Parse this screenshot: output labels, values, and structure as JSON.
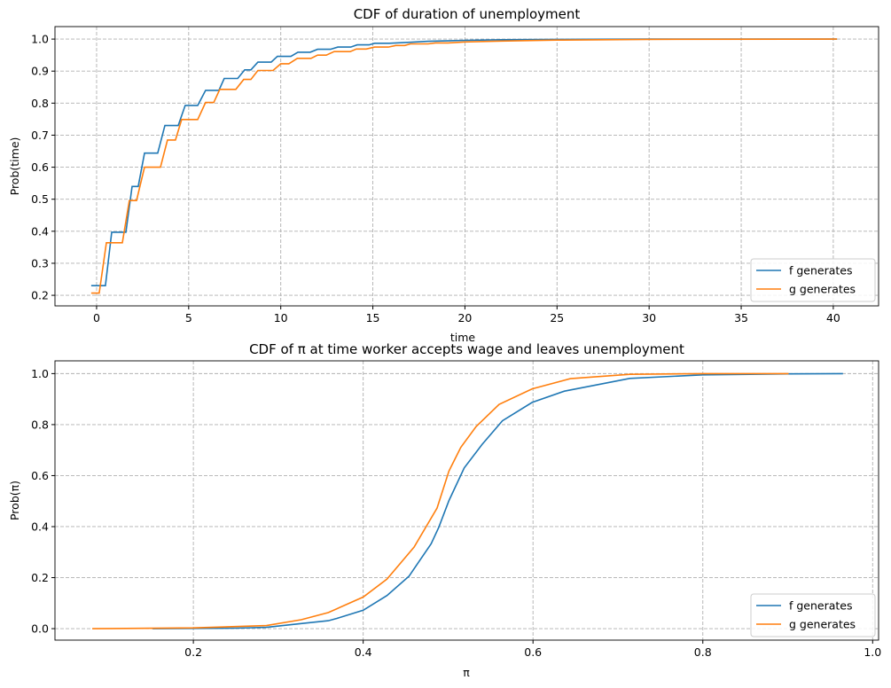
{
  "chart_data": [
    {
      "type": "line",
      "title": "CDF of duration of unemployment",
      "xlabel": "time",
      "ylabel": "Prob(time)",
      "xlim": [
        -2.26,
        42.46
      ],
      "ylim": [
        0.167,
        1.039
      ],
      "xticks": [
        0,
        5,
        10,
        15,
        20,
        25,
        30,
        35,
        40
      ],
      "xtick_labels": [
        "0",
        "5",
        "10",
        "15",
        "20",
        "25",
        "30",
        "35",
        "40"
      ],
      "yticks": [
        0.2,
        0.3,
        0.4,
        0.5,
        0.6,
        0.7,
        0.8,
        0.9,
        1.0
      ],
      "ytick_labels": [
        "0.2",
        "0.3",
        "0.4",
        "0.5",
        "0.6",
        "0.7",
        "0.8",
        "0.9",
        "1.0"
      ],
      "grid": true,
      "legend": "lower right",
      "series": [
        {
          "name": "f generates",
          "color": "#1f77b4",
          "points": [
            [
              -0.29,
              0.23
            ],
            [
              0.48,
              0.23
            ],
            [
              0.82,
              0.397
            ],
            [
              1.59,
              0.397
            ],
            [
              1.93,
              0.54
            ],
            [
              2.26,
              0.54
            ],
            [
              2.6,
              0.644
            ],
            [
              3.32,
              0.644
            ],
            [
              3.71,
              0.73
            ],
            [
              4.43,
              0.73
            ],
            [
              4.81,
              0.793
            ],
            [
              5.49,
              0.793
            ],
            [
              5.92,
              0.84
            ],
            [
              6.64,
              0.84
            ],
            [
              6.93,
              0.877
            ],
            [
              7.66,
              0.877
            ],
            [
              8.04,
              0.904
            ],
            [
              8.38,
              0.904
            ],
            [
              8.76,
              0.928
            ],
            [
              9.48,
              0.928
            ],
            [
              9.82,
              0.946
            ],
            [
              10.55,
              0.946
            ],
            [
              10.93,
              0.959
            ],
            [
              11.6,
              0.959
            ],
            [
              12.0,
              0.968
            ],
            [
              12.7,
              0.968
            ],
            [
              13.1,
              0.975
            ],
            [
              13.8,
              0.975
            ],
            [
              14.15,
              0.982
            ],
            [
              14.8,
              0.982
            ],
            [
              15.1,
              0.987
            ],
            [
              15.9,
              0.987
            ],
            [
              17,
              0.99
            ],
            [
              18,
              0.993
            ],
            [
              20,
              0.996
            ],
            [
              22,
              0.998
            ],
            [
              25,
              0.999
            ],
            [
              30,
              1.0
            ],
            [
              40.2,
              1.0
            ]
          ]
        },
        {
          "name": "g generates",
          "color": "#ff7f0e",
          "points": [
            [
              -0.29,
              0.207
            ],
            [
              0.14,
              0.207
            ],
            [
              0.53,
              0.364
            ],
            [
              1.4,
              0.364
            ],
            [
              1.78,
              0.496
            ],
            [
              2.17,
              0.496
            ],
            [
              2.6,
              0.6
            ],
            [
              3.47,
              0.6
            ],
            [
              3.85,
              0.685
            ],
            [
              4.28,
              0.685
            ],
            [
              4.62,
              0.749
            ],
            [
              5.49,
              0.749
            ],
            [
              5.92,
              0.802
            ],
            [
              6.36,
              0.802
            ],
            [
              6.69,
              0.843
            ],
            [
              7.56,
              0.843
            ],
            [
              7.99,
              0.874
            ],
            [
              8.38,
              0.874
            ],
            [
              8.76,
              0.902
            ],
            [
              9.58,
              0.902
            ],
            [
              10.0,
              0.923
            ],
            [
              10.44,
              0.923
            ],
            [
              10.9,
              0.94
            ],
            [
              11.64,
              0.94
            ],
            [
              12.0,
              0.95
            ],
            [
              12.47,
              0.95
            ],
            [
              12.9,
              0.961
            ],
            [
              13.77,
              0.961
            ],
            [
              14.1,
              0.969
            ],
            [
              14.64,
              0.969
            ],
            [
              15.1,
              0.975
            ],
            [
              15.84,
              0.975
            ],
            [
              16.25,
              0.98
            ],
            [
              16.73,
              0.98
            ],
            [
              17.04,
              0.985
            ],
            [
              18.0,
              0.985
            ],
            [
              18.4,
              0.988
            ],
            [
              19.1,
              0.988
            ],
            [
              20,
              0.991
            ],
            [
              22,
              0.994
            ],
            [
              25,
              0.997
            ],
            [
              30,
              0.999
            ],
            [
              40.2,
              1.0
            ]
          ]
        }
      ]
    },
    {
      "type": "line",
      "title": "CDF of π at time worker accepts wage and leaves unemployment",
      "xlabel": "π",
      "ylabel": "Prob(π)",
      "xlim": [
        0.037,
        1.007
      ],
      "ylim": [
        -0.045,
        1.05
      ],
      "xticks": [
        0.2,
        0.4,
        0.6,
        0.8,
        1.0
      ],
      "xtick_labels": [
        "0.2",
        "0.4",
        "0.6",
        "0.8",
        "1.0"
      ],
      "yticks": [
        0,
        0.2,
        0.4,
        0.6,
        0.8,
        1.0
      ],
      "ytick_labels": [
        "0.0",
        "0.2",
        "0.4",
        "0.6",
        "0.8",
        "1.0"
      ],
      "grid": true,
      "legend": "lower right",
      "series": [
        {
          "name": "f generates",
          "color": "#1f77b4",
          "points": [
            [
              0.152,
              0
            ],
            [
              0.25,
              0.002
            ],
            [
              0.286,
              0.005
            ],
            [
              0.327,
              0.02
            ],
            [
              0.359,
              0.031
            ],
            [
              0.369,
              0.04
            ],
            [
              0.4,
              0.072
            ],
            [
              0.428,
              0.13
            ],
            [
              0.454,
              0.206
            ],
            [
              0.48,
              0.333
            ],
            [
              0.489,
              0.397
            ],
            [
              0.501,
              0.502
            ],
            [
              0.519,
              0.63
            ],
            [
              0.54,
              0.722
            ],
            [
              0.564,
              0.815
            ],
            [
              0.599,
              0.887
            ],
            [
              0.637,
              0.931
            ],
            [
              0.714,
              0.981
            ],
            [
              0.8,
              0.995
            ],
            [
              0.9,
              0.999
            ],
            [
              0.965,
              1.0
            ]
          ]
        },
        {
          "name": "g generates",
          "color": "#ff7f0e",
          "points": [
            [
              0.081,
              0
            ],
            [
              0.2,
              0.003
            ],
            [
              0.286,
              0.012
            ],
            [
              0.327,
              0.035
            ],
            [
              0.359,
              0.063
            ],
            [
              0.4,
              0.124
            ],
            [
              0.428,
              0.194
            ],
            [
              0.46,
              0.32
            ],
            [
              0.487,
              0.473
            ],
            [
              0.501,
              0.618
            ],
            [
              0.515,
              0.711
            ],
            [
              0.533,
              0.792
            ],
            [
              0.56,
              0.879
            ],
            [
              0.599,
              0.94
            ],
            [
              0.644,
              0.98
            ],
            [
              0.714,
              0.997
            ],
            [
              0.8,
              1.0
            ],
            [
              0.901,
              1.0
            ]
          ]
        }
      ]
    }
  ]
}
